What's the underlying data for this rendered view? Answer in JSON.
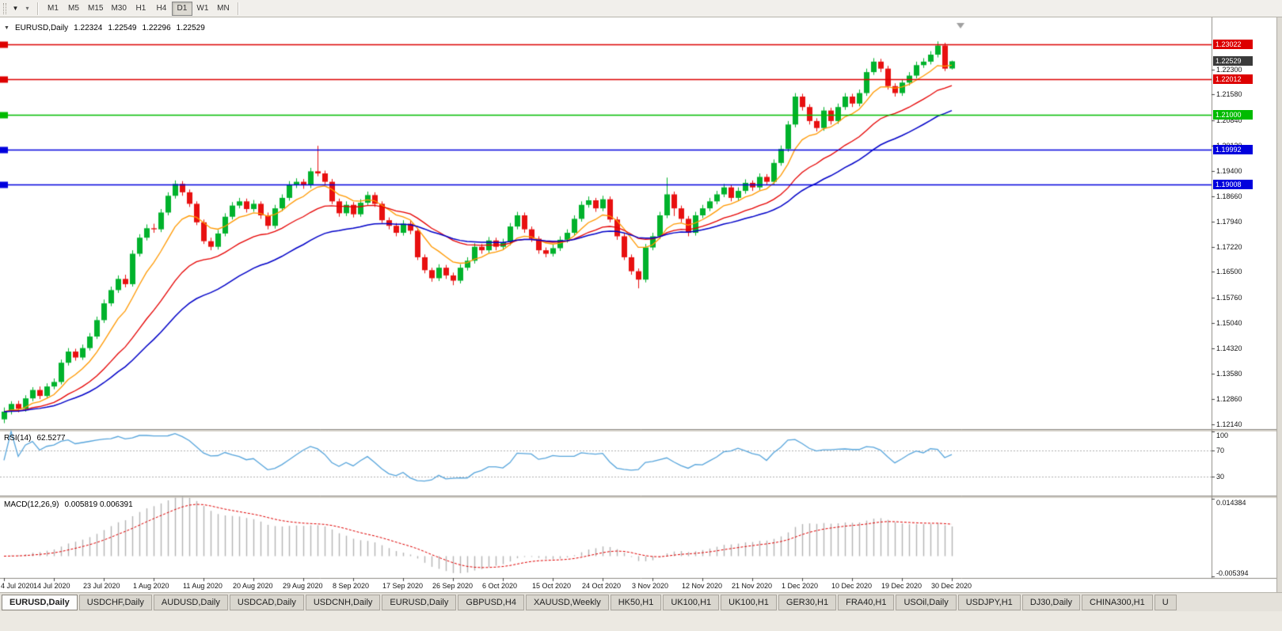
{
  "toolbar": {
    "timeframes": [
      {
        "label": "M1",
        "active": false
      },
      {
        "label": "M5",
        "active": false
      },
      {
        "label": "M15",
        "active": false
      },
      {
        "label": "M30",
        "active": false
      },
      {
        "label": "H1",
        "active": false
      },
      {
        "label": "H4",
        "active": false
      },
      {
        "label": "D1",
        "active": true
      },
      {
        "label": "W1",
        "active": false
      },
      {
        "label": "MN",
        "active": false
      }
    ]
  },
  "chart_header": {
    "symbol_period": "EURUSD,Daily",
    "open": "1.22324",
    "high": "1.22549",
    "low": "1.22296",
    "close": "1.22529"
  },
  "rsi_header": {
    "label": "RSI(14)",
    "value": "62.5277"
  },
  "macd_header": {
    "label": "MACD(12,26,9)",
    "value": "0.005819 0.006391"
  },
  "chart_data": {
    "type": "candlestick",
    "title": "EURUSD,Daily",
    "y_range": [
      1.12,
      1.2365
    ],
    "y_ticks": [
      "1.22300",
      "1.21580",
      "1.20840",
      "1.20120",
      "1.19400",
      "1.18660",
      "1.17940",
      "1.17220",
      "1.16500",
      "1.15760",
      "1.15040",
      "1.14320",
      "1.13580",
      "1.12860",
      "1.12140"
    ],
    "x_labels": [
      "4 Jul 2020",
      "14 Jul 2020",
      "23 Jul 2020",
      "1 Aug 2020",
      "11 Aug 2020",
      "20 Aug 2020",
      "29 Aug 2020",
      "8 Sep 2020",
      "17 Sep 2020",
      "26 Sep 2020",
      "6 Oct 2020",
      "15 Oct 2020",
      "24 Oct 2020",
      "3 Nov 2020",
      "12 Nov 2020",
      "21 Nov 2020",
      "1 Dec 2020",
      "10 Dec 2020",
      "19 Dec 2020",
      "30 Dec 2020"
    ],
    "x_label_indices": [
      0,
      7,
      14,
      21,
      28,
      35,
      42,
      49,
      56,
      63,
      70,
      77,
      84,
      91,
      98,
      105,
      112,
      119,
      126,
      133
    ],
    "up_color": "#00b22c",
    "down_color": "#e81010",
    "moving_averages": [
      {
        "name": "ma-fast",
        "period": 8,
        "color": "#ff9900"
      },
      {
        "name": "ma-mid",
        "period": 20,
        "color": "#e60000"
      },
      {
        "name": "ma-slow",
        "period": 34,
        "color": "#0000c8"
      }
    ],
    "hlines": [
      {
        "price": 1.23022,
        "label": "1.23022",
        "color": "#dd0000"
      },
      {
        "price": 1.22012,
        "label": "1.22012",
        "color": "#dd0000"
      },
      {
        "price": 1.21,
        "label": "1.21000",
        "color": "#00bb00"
      },
      {
        "price": 1.19992,
        "label": "1.19992",
        "color": "#0000dd"
      },
      {
        "price": 1.19008,
        "label": "1.19008",
        "color": "#0000dd"
      }
    ],
    "bid": {
      "price": 1.22529,
      "label": "1.22529",
      "color": "#3a3a3a"
    },
    "rsi": {
      "type": "line",
      "period": 14,
      "current": 62.5277,
      "color": "#57a5dc",
      "range": [
        0,
        100
      ],
      "levels": [
        70,
        30
      ],
      "level_labels": [
        "100",
        "70",
        "30"
      ],
      "level_color": "#b0b0b0"
    },
    "macd": {
      "type": "histogram+line",
      "fast": 12,
      "slow": 26,
      "signal": 9,
      "current_macd": 0.005819,
      "current_signal": 0.006391,
      "range": [
        -0.005394,
        0.014384
      ],
      "scale_labels": [
        "0.014384",
        "-0.005394"
      ],
      "hist_color": "#b4b4b4",
      "signal_color": "#e00000"
    },
    "candles": [
      [
        1.1228,
        1.1262,
        1.1217,
        1.125
      ],
      [
        1.125,
        1.128,
        1.1242,
        1.1272
      ],
      [
        1.1272,
        1.1281,
        1.1248,
        1.1258
      ],
      [
        1.1258,
        1.1297,
        1.125,
        1.1288
      ],
      [
        1.1288,
        1.132,
        1.128,
        1.1312
      ],
      [
        1.1312,
        1.1322,
        1.1286,
        1.1295
      ],
      [
        1.1295,
        1.1331,
        1.1288,
        1.1322
      ],
      [
        1.1322,
        1.1345,
        1.1314,
        1.1335
      ],
      [
        1.1335,
        1.1399,
        1.1328,
        1.139
      ],
      [
        1.139,
        1.1432,
        1.1382,
        1.1422
      ],
      [
        1.1422,
        1.143,
        1.1396,
        1.1405
      ],
      [
        1.1405,
        1.1442,
        1.1398,
        1.1432
      ],
      [
        1.1432,
        1.1475,
        1.1425,
        1.1465
      ],
      [
        1.1465,
        1.1522,
        1.1458,
        1.1512
      ],
      [
        1.1512,
        1.1571,
        1.1504,
        1.156
      ],
      [
        1.156,
        1.1608,
        1.1552,
        1.1598
      ],
      [
        1.1598,
        1.164,
        1.159,
        1.163
      ],
      [
        1.163,
        1.1642,
        1.1606,
        1.1615
      ],
      [
        1.1615,
        1.1712,
        1.1608,
        1.1702
      ],
      [
        1.1702,
        1.1758,
        1.1694,
        1.1748
      ],
      [
        1.1748,
        1.1786,
        1.174,
        1.1775
      ],
      [
        1.1775,
        1.1788,
        1.1762,
        1.1772
      ],
      [
        1.1772,
        1.183,
        1.1764,
        1.182
      ],
      [
        1.182,
        1.1878,
        1.1812,
        1.1868
      ],
      [
        1.1868,
        1.1912,
        1.186,
        1.1902
      ],
      [
        1.1902,
        1.191,
        1.1868,
        1.1878
      ],
      [
        1.1878,
        1.1886,
        1.1836,
        1.1845
      ],
      [
        1.1845,
        1.1852,
        1.1784,
        1.1792
      ],
      [
        1.1792,
        1.18,
        1.173,
        1.1738
      ],
      [
        1.1738,
        1.1748,
        1.1712,
        1.1722
      ],
      [
        1.1722,
        1.177,
        1.1714,
        1.176
      ],
      [
        1.176,
        1.1818,
        1.1752,
        1.1808
      ],
      [
        1.1808,
        1.185,
        1.18,
        1.184
      ],
      [
        1.184,
        1.1862,
        1.1832,
        1.1852
      ],
      [
        1.1852,
        1.186,
        1.182,
        1.183
      ],
      [
        1.183,
        1.1856,
        1.1822,
        1.1845
      ],
      [
        1.1845,
        1.1852,
        1.1802,
        1.1812
      ],
      [
        1.1812,
        1.182,
        1.1772,
        1.1782
      ],
      [
        1.1782,
        1.1842,
        1.1774,
        1.1832
      ],
      [
        1.1832,
        1.1872,
        1.1824,
        1.1862
      ],
      [
        1.1862,
        1.191,
        1.1854,
        1.19
      ],
      [
        1.19,
        1.1918,
        1.189,
        1.1908
      ],
      [
        1.1908,
        1.1916,
        1.1888,
        1.1898
      ],
      [
        1.1898,
        1.1948,
        1.189,
        1.1938
      ],
      [
        1.1938,
        1.2011,
        1.1924,
        1.1932
      ],
      [
        1.1932,
        1.194,
        1.1898,
        1.1908
      ],
      [
        1.1908,
        1.1916,
        1.1844,
        1.1852
      ],
      [
        1.1852,
        1.186,
        1.1808,
        1.1818
      ],
      [
        1.1818,
        1.1852,
        1.181,
        1.1842
      ],
      [
        1.1842,
        1.185,
        1.1806,
        1.1815
      ],
      [
        1.1815,
        1.1858,
        1.1808,
        1.1848
      ],
      [
        1.1848,
        1.188,
        1.184,
        1.187
      ],
      [
        1.187,
        1.1878,
        1.1836,
        1.1845
      ],
      [
        1.1845,
        1.1852,
        1.179,
        1.1798
      ],
      [
        1.1798,
        1.1806,
        1.1772,
        1.1782
      ],
      [
        1.1782,
        1.179,
        1.1752,
        1.1762
      ],
      [
        1.1762,
        1.1798,
        1.1754,
        1.1788
      ],
      [
        1.1788,
        1.1796,
        1.1758,
        1.1768
      ],
      [
        1.1768,
        1.1776,
        1.1684,
        1.1692
      ],
      [
        1.1692,
        1.17,
        1.1646,
        1.1655
      ],
      [
        1.1655,
        1.1662,
        1.1622,
        1.1632
      ],
      [
        1.1632,
        1.1672,
        1.1624,
        1.1662
      ],
      [
        1.1662,
        1.167,
        1.163,
        1.164
      ],
      [
        1.164,
        1.1648,
        1.1612,
        1.1625
      ],
      [
        1.1625,
        1.1672,
        1.1617,
        1.1662
      ],
      [
        1.1662,
        1.1692,
        1.1654,
        1.1682
      ],
      [
        1.1682,
        1.1732,
        1.1674,
        1.1722
      ],
      [
        1.1722,
        1.173,
        1.1702,
        1.1712
      ],
      [
        1.1712,
        1.175,
        1.1704,
        1.174
      ],
      [
        1.174,
        1.1748,
        1.1712,
        1.1722
      ],
      [
        1.1722,
        1.1745,
        1.1714,
        1.1735
      ],
      [
        1.1735,
        1.179,
        1.1726,
        1.178
      ],
      [
        1.178,
        1.1822,
        1.1772,
        1.1812
      ],
      [
        1.1812,
        1.182,
        1.1762,
        1.1772
      ],
      [
        1.1772,
        1.178,
        1.1736,
        1.1745
      ],
      [
        1.1745,
        1.1752,
        1.1702,
        1.1712
      ],
      [
        1.1712,
        1.172,
        1.1692,
        1.1702
      ],
      [
        1.1702,
        1.1728,
        1.1694,
        1.1718
      ],
      [
        1.1718,
        1.1752,
        1.171,
        1.1742
      ],
      [
        1.1742,
        1.1772,
        1.1734,
        1.1762
      ],
      [
        1.1762,
        1.1812,
        1.1754,
        1.1802
      ],
      [
        1.1802,
        1.1852,
        1.1794,
        1.1842
      ],
      [
        1.1842,
        1.1866,
        1.1834,
        1.1855
      ],
      [
        1.1855,
        1.1862,
        1.1822,
        1.1832
      ],
      [
        1.1832,
        1.1868,
        1.1824,
        1.1858
      ],
      [
        1.1858,
        1.1866,
        1.1792,
        1.18
      ],
      [
        1.18,
        1.1808,
        1.1742,
        1.1752
      ],
      [
        1.1752,
        1.176,
        1.1684,
        1.1692
      ],
      [
        1.1692,
        1.17,
        1.1642,
        1.1652
      ],
      [
        1.1652,
        1.166,
        1.1603,
        1.1628
      ],
      [
        1.1628,
        1.173,
        1.162,
        1.172
      ],
      [
        1.172,
        1.1762,
        1.1712,
        1.1752
      ],
      [
        1.1752,
        1.1822,
        1.1744,
        1.1812
      ],
      [
        1.1812,
        1.192,
        1.1804,
        1.1872
      ],
      [
        1.1872,
        1.188,
        1.181,
        1.1832
      ],
      [
        1.1832,
        1.184,
        1.1792,
        1.1802
      ],
      [
        1.1802,
        1.181,
        1.1752,
        1.1762
      ],
      [
        1.1762,
        1.1822,
        1.1754,
        1.1812
      ],
      [
        1.1812,
        1.1842,
        1.1804,
        1.1832
      ],
      [
        1.1832,
        1.1862,
        1.1824,
        1.1852
      ],
      [
        1.1852,
        1.1882,
        1.1844,
        1.1872
      ],
      [
        1.1872,
        1.1902,
        1.1864,
        1.1892
      ],
      [
        1.1892,
        1.19,
        1.1852,
        1.1862
      ],
      [
        1.1862,
        1.1892,
        1.1854,
        1.1882
      ],
      [
        1.1882,
        1.1915,
        1.1874,
        1.1905
      ],
      [
        1.1905,
        1.1912,
        1.1882,
        1.1892
      ],
      [
        1.1892,
        1.1932,
        1.1884,
        1.1922
      ],
      [
        1.1922,
        1.193,
        1.1898,
        1.1908
      ],
      [
        1.1908,
        1.1972,
        1.19,
        1.1962
      ],
      [
        1.1962,
        1.2012,
        1.1954,
        1.2002
      ],
      [
        1.2002,
        1.2082,
        1.1994,
        1.2072
      ],
      [
        1.2072,
        1.2162,
        1.2064,
        1.2152
      ],
      [
        1.2152,
        1.216,
        1.2112,
        1.2122
      ],
      [
        1.2122,
        1.213,
        1.2072,
        1.2082
      ],
      [
        1.2082,
        1.209,
        1.2052,
        1.2062
      ],
      [
        1.2062,
        1.2122,
        1.2054,
        1.2112
      ],
      [
        1.2112,
        1.212,
        1.2072,
        1.2082
      ],
      [
        1.2082,
        1.2132,
        1.2074,
        1.2122
      ],
      [
        1.2122,
        1.2162,
        1.2114,
        1.2152
      ],
      [
        1.2152,
        1.216,
        1.2122,
        1.2132
      ],
      [
        1.2132,
        1.2172,
        1.2124,
        1.2162
      ],
      [
        1.2162,
        1.2232,
        1.2154,
        1.2222
      ],
      [
        1.2222,
        1.2262,
        1.2214,
        1.2252
      ],
      [
        1.2252,
        1.226,
        1.2222,
        1.2232
      ],
      [
        1.2232,
        1.224,
        1.2172,
        1.2182
      ],
      [
        1.2182,
        1.219,
        1.2152,
        1.2162
      ],
      [
        1.2162,
        1.2202,
        1.2154,
        1.2192
      ],
      [
        1.2192,
        1.2222,
        1.2184,
        1.2212
      ],
      [
        1.2212,
        1.2252,
        1.2204,
        1.2242
      ],
      [
        1.2242,
        1.2262,
        1.2234,
        1.2252
      ],
      [
        1.2252,
        1.2282,
        1.2244,
        1.2272
      ],
      [
        1.2272,
        1.231,
        1.2264,
        1.2298
      ],
      [
        1.2298,
        1.2306,
        1.2225,
        1.2232
      ],
      [
        1.22324,
        1.22549,
        1.22296,
        1.22529
      ]
    ]
  },
  "bottom_tabs": [
    {
      "label": "EURUSD,Daily",
      "active": true
    },
    {
      "label": "USDCHF,Daily",
      "active": false
    },
    {
      "label": "AUDUSD,Daily",
      "active": false
    },
    {
      "label": "USDCAD,Daily",
      "active": false
    },
    {
      "label": "USDCNH,Daily",
      "active": false
    },
    {
      "label": "EURUSD,Daily",
      "active": false
    },
    {
      "label": "GBPUSD,H4",
      "active": false
    },
    {
      "label": "XAUUSD,Weekly",
      "active": false
    },
    {
      "label": "HK50,H1",
      "active": false
    },
    {
      "label": "UK100,H1",
      "active": false
    },
    {
      "label": "UK100,H1",
      "active": false
    },
    {
      "label": "GER30,H1",
      "active": false
    },
    {
      "label": "FRA40,H1",
      "active": false
    },
    {
      "label": "USOil,Daily",
      "active": false
    },
    {
      "label": "USDJPY,H1",
      "active": false
    },
    {
      "label": "DJ30,Daily",
      "active": false
    },
    {
      "label": "CHINA300,H1",
      "active": false
    },
    {
      "label": "U",
      "active": false
    }
  ]
}
